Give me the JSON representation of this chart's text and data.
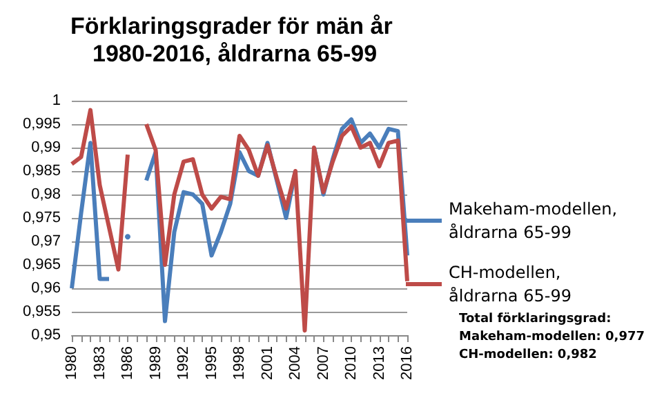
{
  "chart_data": {
    "type": "line",
    "title": "Förklaringsgrader för män år 1980-2016, åldrarna 65-99",
    "categories": [
      "1980",
      null,
      null,
      "1983",
      null,
      null,
      "1986",
      null,
      null,
      "1989",
      null,
      null,
      "1992",
      null,
      null,
      "1995",
      null,
      null,
      "1998",
      null,
      null,
      "2001",
      null,
      null,
      "2004",
      null,
      null,
      "2007",
      null,
      null,
      "2010",
      null,
      null,
      "2013",
      null,
      null,
      "2016"
    ],
    "series": [
      {
        "name": "Makeham-modellen, åldrarna 65-99",
        "color": "#4a7ebb",
        "values": [
          0.96,
          0.976,
          0.991,
          0.962,
          0.962,
          null,
          0.971,
          null,
          0.983,
          0.989,
          0.953,
          0.972,
          0.9805,
          0.98,
          0.978,
          0.967,
          0.972,
          0.978,
          0.989,
          0.985,
          0.984,
          0.991,
          0.983,
          0.975,
          0.985,
          null,
          0.99,
          0.98,
          0.9875,
          0.994,
          0.996,
          0.991,
          0.993,
          0.99,
          0.994,
          0.9935,
          0.967
        ]
      },
      {
        "name": "CH-modellen, åldrarna 65-99",
        "color": "#be4b48",
        "values": [
          0.9865,
          0.988,
          0.998,
          0.982,
          0.973,
          0.964,
          0.9885,
          null,
          0.995,
          0.9895,
          0.965,
          0.98,
          0.987,
          0.9875,
          0.98,
          0.977,
          0.9795,
          0.979,
          0.9925,
          0.9895,
          0.984,
          0.9905,
          0.9835,
          0.977,
          0.985,
          0.951,
          0.99,
          0.9805,
          0.987,
          0.9925,
          0.9945,
          0.99,
          0.991,
          0.986,
          0.991,
          0.9915,
          0.9615
        ]
      }
    ],
    "ylim": [
      0.95,
      1
    ],
    "yticks": [
      {
        "value": 0.95,
        "label": "0,95"
      },
      {
        "value": 0.955,
        "label": "0,955"
      },
      {
        "value": 0.96,
        "label": "0,96"
      },
      {
        "value": 0.965,
        "label": "0,965"
      },
      {
        "value": 0.97,
        "label": "0,97"
      },
      {
        "value": 0.975,
        "label": "0,975"
      },
      {
        "value": 0.98,
        "label": "0,98"
      },
      {
        "value": 0.985,
        "label": "0,985"
      },
      {
        "value": 0.99,
        "label": "0,99"
      },
      {
        "value": 0.995,
        "label": "0,995"
      },
      {
        "value": 1,
        "label": "1"
      }
    ],
    "grid": "y",
    "legend": "right",
    "marker": "none",
    "line_style": "solid",
    "annotations": [
      "Total förklaringsgrad:\nMakeham-modellen: 0,977\nCH-modellen: 0,982"
    ]
  }
}
